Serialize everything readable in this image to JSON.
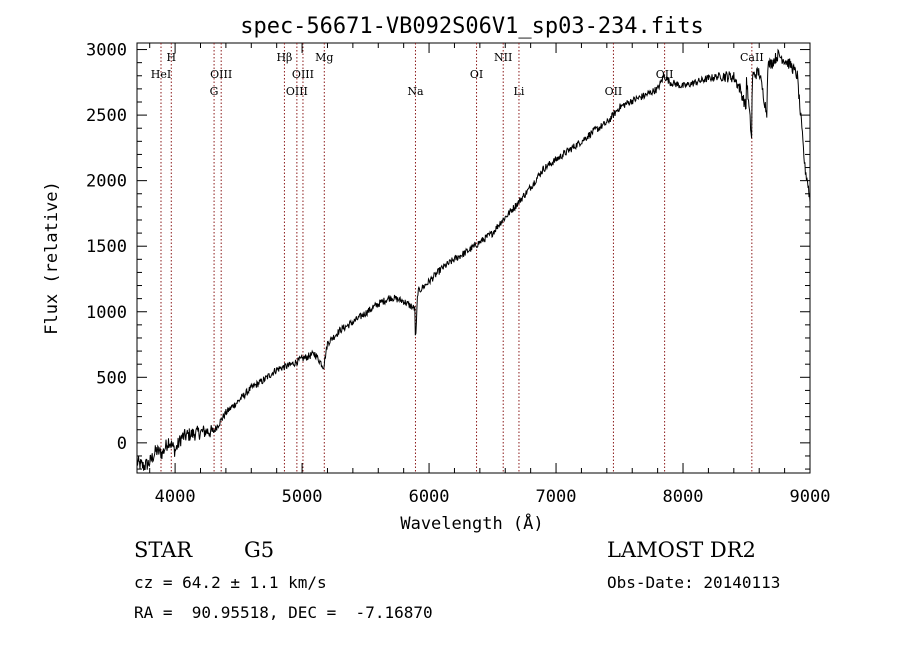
{
  "chart_data": {
    "type": "line",
    "title": "spec-56671-VB092S06V1_sp03-234.fits",
    "xlabel": "Wavelength (Å)",
    "ylabel": "Flux (relative)",
    "xlim": [
      3700,
      9000
    ],
    "ylim": [
      -230,
      3050
    ],
    "xticks": [
      4000,
      5000,
      6000,
      7000,
      8000,
      9000
    ],
    "xtick_labels": [
      "4000",
      "5000",
      "6000",
      "7000",
      "8000",
      "9000"
    ],
    "yticks": [
      0,
      500,
      1000,
      1500,
      2000,
      2500,
      3000
    ],
    "ytick_labels": [
      "0",
      "500",
      "1000",
      "1500",
      "2000",
      "2500",
      "3000"
    ],
    "grid": false,
    "line_color": "#000000",
    "marker_color": "#8b1a1a",
    "series": [
      {
        "x": [
          3700,
          3750,
          3800,
          3850,
          3900,
          3950,
          4000,
          4050,
          4100,
          4150,
          4200,
          4250,
          4300,
          4400,
          4500,
          4600,
          4700,
          4800,
          4860,
          4900,
          5000,
          5100,
          5170,
          5200,
          5300,
          5400,
          5500,
          5600,
          5700,
          5800,
          5890,
          5893,
          5910,
          6000,
          6100,
          6200,
          6300,
          6400,
          6500,
          6560,
          6600,
          6700,
          6800,
          6900,
          7000,
          7100,
          7200,
          7300,
          7400,
          7500,
          7600,
          7700,
          7800,
          7850,
          7900,
          8000,
          8100,
          8200,
          8300,
          8400,
          8450,
          8498,
          8500,
          8542,
          8545,
          8600,
          8662,
          8665,
          8700,
          8750,
          8800,
          8850,
          8900,
          8930,
          8960,
          8980,
          9000
        ],
        "y": [
          -150,
          -180,
          -150,
          -60,
          -80,
          20,
          -60,
          40,
          60,
          70,
          80,
          90,
          80,
          230,
          320,
          420,
          480,
          560,
          580,
          590,
          640,
          680,
          580,
          760,
          860,
          920,
          990,
          1060,
          1110,
          1080,
          1020,
          740,
          1150,
          1230,
          1330,
          1400,
          1460,
          1530,
          1600,
          1680,
          1720,
          1830,
          1950,
          2090,
          2160,
          2230,
          2300,
          2380,
          2440,
          2560,
          2610,
          2650,
          2700,
          2800,
          2750,
          2720,
          2750,
          2780,
          2800,
          2790,
          2700,
          2550,
          2780,
          2300,
          2800,
          2830,
          2500,
          2880,
          2900,
          2960,
          2920,
          2880,
          2800,
          2450,
          2100,
          2000,
          1850
        ]
      }
    ],
    "lines": [
      {
        "label": "HeI",
        "wavelength": 3889,
        "row": 2
      },
      {
        "label": "H",
        "wavelength": 3970,
        "row": 1
      },
      {
        "label": "OIII",
        "wavelength": 4363,
        "row": 2
      },
      {
        "label": "G",
        "wavelength": 4307,
        "row": 3
      },
      {
        "label": "Hβ",
        "wavelength": 4861,
        "row": 1
      },
      {
        "label": "OIII",
        "wavelength": 4959,
        "row": 3
      },
      {
        "label": "OIII",
        "wavelength": 5007,
        "row": 2
      },
      {
        "label": "Mg",
        "wavelength": 5175,
        "row": 1
      },
      {
        "label": "Na",
        "wavelength": 5893,
        "row": 3
      },
      {
        "label": "OI",
        "wavelength": 6374,
        "row": 2
      },
      {
        "label": "NII",
        "wavelength": 6584,
        "row": 1
      },
      {
        "label": "Li",
        "wavelength": 6708,
        "row": 3
      },
      {
        "label": "OII",
        "wavelength": 7452,
        "row": 3
      },
      {
        "label": "OII",
        "wavelength": 7855,
        "row": 2
      },
      {
        "label": "CaII",
        "wavelength": 8542,
        "row": 1
      }
    ]
  },
  "info": {
    "object_class": "STAR",
    "subclass": "G5",
    "survey": "LAMOST DR2",
    "cz": "cz = 64.2 ± 1.1 km/s",
    "obs_date": "Obs-Date: 20140113",
    "radec": "RA =  90.95518, DEC =  -7.16870"
  }
}
